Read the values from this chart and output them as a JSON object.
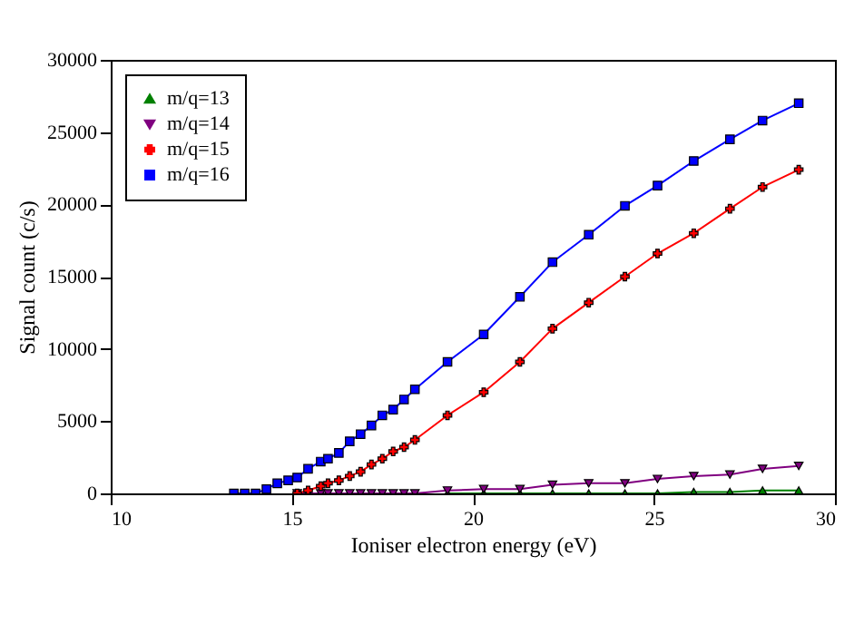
{
  "chart_data": {
    "type": "line",
    "xlabel": "Ioniser electron energy (eV)",
    "ylabel": "Signal count (c/s)",
    "x": [
      13.4,
      13.7,
      14.0,
      14.3,
      14.6,
      14.9,
      15.15,
      15.45,
      15.8,
      16.0,
      16.3,
      16.6,
      16.9,
      17.2,
      17.5,
      17.8,
      18.1,
      18.4,
      19.3,
      20.3,
      21.3,
      22.2,
      23.2,
      24.2,
      25.1,
      26.1,
      27.1,
      28.0,
      29.0
    ],
    "series": [
      {
        "name": "m/q=13",
        "color": "#008000",
        "marker": "triangle",
        "values": [
          null,
          null,
          null,
          null,
          null,
          null,
          null,
          null,
          null,
          null,
          null,
          null,
          null,
          null,
          null,
          null,
          null,
          null,
          0,
          0,
          0,
          0,
          0,
          0,
          0,
          100,
          100,
          200,
          200
        ]
      },
      {
        "name": "m/q=14",
        "color": "#800080",
        "marker": "triangle-down",
        "values": [
          null,
          null,
          null,
          null,
          null,
          null,
          0,
          0,
          0,
          0,
          0,
          0,
          0,
          0,
          0,
          0,
          0,
          0,
          200,
          300,
          300,
          600,
          700,
          700,
          1000,
          1200,
          1300,
          1700,
          1900
        ]
      },
      {
        "name": "m/q=15",
        "color": "#ff0000",
        "marker": "cross",
        "values": [
          null,
          null,
          null,
          null,
          null,
          null,
          0,
          200,
          500,
          700,
          900,
          1200,
          1500,
          2000,
          2400,
          2900,
          3200,
          3700,
          5400,
          7000,
          9100,
          11400,
          13200,
          15000,
          16600,
          18000,
          19700,
          21200,
          22400
        ]
      },
      {
        "name": "m/q=16",
        "color": "#0000ff",
        "marker": "square",
        "values": [
          0,
          0,
          0,
          300,
          700,
          900,
          1100,
          1700,
          2200,
          2400,
          2800,
          3600,
          4100,
          4700,
          5400,
          5800,
          6500,
          7200,
          9100,
          11000,
          13600,
          16000,
          17900,
          19900,
          21300,
          23000,
          24500,
          25800,
          27000
        ]
      }
    ],
    "xlim": [
      10,
      30
    ],
    "xticks": [
      10,
      15,
      20,
      25,
      30
    ],
    "ylim": [
      0,
      30000
    ],
    "yticks": [
      0,
      5000,
      10000,
      15000,
      20000,
      25000,
      30000
    ],
    "grid": false,
    "legend": "top left",
    "line_style": "solid"
  }
}
